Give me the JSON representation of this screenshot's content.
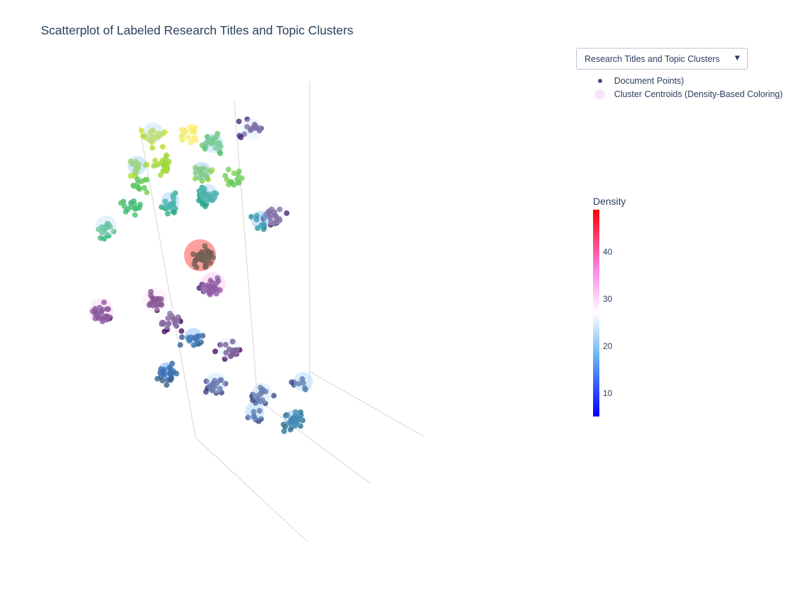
{
  "title": "Scatterplot of Labeled Research Titles and Topic Clusters",
  "dropdown": {
    "selected": "Research Titles and Topic Clusters",
    "arrow": "▼"
  },
  "legend": [
    {
      "label": "Document Points)",
      "color": "#5b3f8f"
    },
    {
      "label": "Cluster Centroids (Density-Based Coloring)",
      "color": "#f5e6f7"
    }
  ],
  "chart_data": {
    "type": "scatter",
    "title": "Scatterplot of Labeled Research Titles and Topic Clusters",
    "colorbar": {
      "title": "Density",
      "range": [
        5,
        49
      ],
      "ticks": [
        10,
        20,
        30,
        40
      ],
      "colorscale": [
        "#0000ff",
        "#6ab7f5",
        "#ffffff",
        "#ff7fe6",
        "#ff0000"
      ]
    },
    "series": [
      {
        "name": "Document Points)",
        "marker_colors": "viridis",
        "clusters": [
          {
            "x": 2.0,
            "y": 8.0,
            "z": 9.5,
            "n": 22,
            "c": 0.92
          },
          {
            "x": 4.5,
            "y": 8.5,
            "z": 9.6,
            "n": 24,
            "c": 0.98
          },
          {
            "x": 6.0,
            "y": 8.4,
            "z": 9.3,
            "n": 26,
            "c": 0.75
          },
          {
            "x": 8.5,
            "y": 8.6,
            "z": 9.8,
            "n": 16,
            "c": 0.12
          },
          {
            "x": 1.0,
            "y": 8.0,
            "z": 8.4,
            "n": 14,
            "c": 0.88
          },
          {
            "x": 2.8,
            "y": 8.1,
            "z": 8.5,
            "n": 20,
            "c": 0.86
          },
          {
            "x": 5.0,
            "y": 8.0,
            "z": 8.2,
            "n": 18,
            "c": 0.82
          },
          {
            "x": 7.0,
            "y": 8.0,
            "z": 8.0,
            "n": 14,
            "c": 0.78
          },
          {
            "x": 0.5,
            "y": 7.0,
            "z": 7.6,
            "n": 12,
            "c": 0.76
          },
          {
            "x": 2.0,
            "y": 6.5,
            "z": 7.0,
            "n": 20,
            "c": 0.62
          },
          {
            "x": 4.0,
            "y": 6.0,
            "z": 7.2,
            "n": 34,
            "c": 0.58
          },
          {
            "x": 6.5,
            "y": 5.0,
            "z": 6.2,
            "n": 10,
            "c": 0.5
          },
          {
            "x": -1.0,
            "y": 5.5,
            "z": 6.8,
            "n": 14,
            "c": 0.7
          },
          {
            "x": -3.0,
            "y": 5.0,
            "z": 6.0,
            "n": 16,
            "c": 0.68
          },
          {
            "x": 8.0,
            "y": 6.0,
            "z": 6.5,
            "n": 20,
            "c": 0.1
          },
          {
            "x": 3.0,
            "y": 5.0,
            "z": 5.0,
            "n": 42,
            "c": 0.55
          },
          {
            "x": 3.5,
            "y": 5.0,
            "z": 4.0,
            "n": 28,
            "c": 0.1
          },
          {
            "x": 0.0,
            "y": 5.0,
            "z": 3.5,
            "n": 20,
            "c": 0.02
          },
          {
            "x": -4.0,
            "y": 4.0,
            "z": 3.0,
            "n": 26,
            "c": 0.08
          },
          {
            "x": -0.5,
            "y": 3.0,
            "z": 2.6,
            "n": 22,
            "c": 0.06
          },
          {
            "x": 1.0,
            "y": 3.0,
            "z": 2.0,
            "n": 18,
            "c": 0.3
          },
          {
            "x": 2.5,
            "y": 2.0,
            "z": 1.5,
            "n": 16,
            "c": 0.03
          },
          {
            "x": -1.0,
            "y": 2.5,
            "z": 0.8,
            "n": 22,
            "c": 0.32
          },
          {
            "x": 1.0,
            "y": 1.0,
            "z": 0.2,
            "n": 20,
            "c": 0.2
          },
          {
            "x": 3.5,
            "y": 0.5,
            "z": -0.2,
            "n": 20,
            "c": 0.22
          },
          {
            "x": 5.0,
            "y": -1.0,
            "z": 0.0,
            "n": 8,
            "c": 0.24
          },
          {
            "x": 2.0,
            "y": -1.0,
            "z": -1.0,
            "n": 8,
            "c": 0.25
          },
          {
            "x": 3.0,
            "y": -3.0,
            "z": -1.5,
            "n": 28,
            "c": 0.36
          }
        ]
      },
      {
        "name": "Cluster Centroids (Density-Based Coloring)",
        "centroids": [
          {
            "x": 2.8,
            "y": 5.0,
            "z": 5.1,
            "density": 49
          },
          {
            "x": 3.6,
            "y": 5.0,
            "z": 4.1,
            "density": 33
          },
          {
            "x": -4.0,
            "y": 4.0,
            "z": 3.1,
            "density": 32
          },
          {
            "x": 0.0,
            "y": 5.0,
            "z": 3.6,
            "density": 30
          },
          {
            "x": 8.0,
            "y": 6.0,
            "z": 6.6,
            "density": 25
          },
          {
            "x": 4.5,
            "y": 8.5,
            "z": 9.6,
            "density": 27
          },
          {
            "x": 8.5,
            "y": 8.6,
            "z": 9.8,
            "density": 24
          },
          {
            "x": -3.0,
            "y": 5.0,
            "z": 6.1,
            "density": 22
          },
          {
            "x": 2.0,
            "y": 8.0,
            "z": 9.6,
            "density": 21
          },
          {
            "x": 6.0,
            "y": 8.4,
            "z": 9.3,
            "density": 20
          },
          {
            "x": 4.0,
            "y": 6.0,
            "z": 7.3,
            "density": 19
          },
          {
            "x": 2.0,
            "y": 6.5,
            "z": 7.1,
            "density": 18
          },
          {
            "x": 6.5,
            "y": 5.0,
            "z": 6.3,
            "density": 16
          },
          {
            "x": 1.0,
            "y": 8.0,
            "z": 8.5,
            "density": 18
          },
          {
            "x": 5.0,
            "y": 8.0,
            "z": 8.3,
            "density": 17
          },
          {
            "x": 1.0,
            "y": 3.0,
            "z": 2.1,
            "density": 15
          },
          {
            "x": -1.0,
            "y": 2.5,
            "z": 0.9,
            "density": 13
          },
          {
            "x": 1.0,
            "y": 1.0,
            "z": 0.3,
            "density": 21
          },
          {
            "x": 2.5,
            "y": 2.0,
            "z": 1.6,
            "density": 24
          },
          {
            "x": 3.5,
            "y": 0.5,
            "z": -0.1,
            "density": 22
          },
          {
            "x": 2.0,
            "y": -1.0,
            "z": -0.9,
            "density": 19
          },
          {
            "x": 3.0,
            "y": -3.0,
            "z": -1.4,
            "density": 16
          },
          {
            "x": 5.0,
            "y": -1.0,
            "z": 0.1,
            "density": 20
          },
          {
            "x": -0.5,
            "y": 3.0,
            "z": 2.7,
            "density": 26
          }
        ]
      }
    ]
  }
}
